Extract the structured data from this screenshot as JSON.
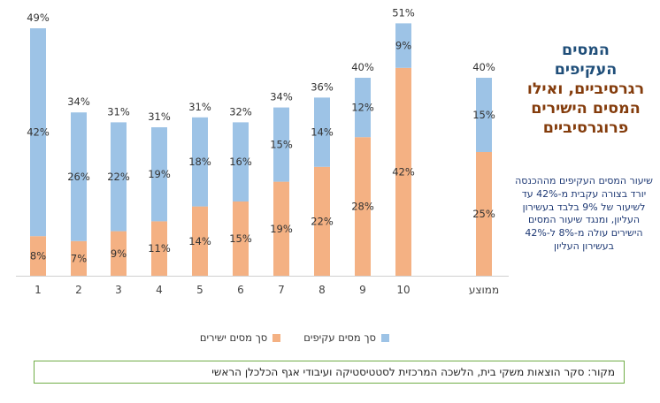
{
  "chart_data": {
    "type": "bar",
    "stacked": true,
    "categories": [
      "1",
      "2",
      "3",
      "4",
      "5",
      "6",
      "7",
      "8",
      "9",
      "10",
      "ממוצע"
    ],
    "series": [
      {
        "name": "סך מסים ישירים",
        "color": "#f4b183",
        "values": [
          8,
          7,
          9,
          11,
          14,
          15,
          19,
          22,
          28,
          42,
          25
        ]
      },
      {
        "name": "סך מסים עקיפים",
        "color": "#9dc3e6",
        "values": [
          42,
          26,
          22,
          19,
          18,
          16,
          15,
          14,
          12,
          9,
          15
        ]
      }
    ],
    "value_labels": {
      "direct": [
        "8%",
        "7%",
        "9%",
        "11%",
        "14%",
        "15%",
        "19%",
        "22%",
        "28%",
        "42%",
        "25%"
      ],
      "indirect": [
        "42%",
        "26%",
        "22%",
        "19%",
        "18%",
        "16%",
        "15%",
        "14%",
        "12%",
        "9%",
        "15%"
      ]
    },
    "totals": [
      "49%",
      "34%",
      "31%",
      "31%",
      "31%",
      "32%",
      "34%",
      "36%",
      "40%",
      "51%",
      "40%"
    ],
    "total_values": [
      49,
      34,
      31,
      31,
      31,
      32,
      34,
      36,
      40,
      51,
      40
    ],
    "ylim": [
      0,
      55
    ],
    "grid": false,
    "legend_position": "bottom"
  },
  "title": {
    "line1": "המסים",
    "line2a": "העקיפים",
    "line2b": "רגרסיביים, ואילו",
    "line3": "המסים הישירים",
    "line4": "פרוגרסיביים"
  },
  "description": "שיעור המסים העקיפים מההכנסה יורד בצורה עקבית מ-42% עד לשיעור של 9% בלבד בעשירון העליון, ומנגד שיעור המסים הישירים עולה מ-8% ל-42% בעשירון העליון",
  "legend": {
    "direct": "סך מסים ישירים",
    "indirect": "סך מסים עקיפים"
  },
  "source": "מקור: סקר הוצאות משקי בית, הלשכה המרכזית לסטטיסטיקה ועיבודי אגף הכלכלן הראשי",
  "colors": {
    "direct": "#f4b183",
    "indirect": "#9dc3e6",
    "title_blue": "#1f4e79",
    "title_brown": "#843c0c",
    "source_border": "#70ad47"
  }
}
